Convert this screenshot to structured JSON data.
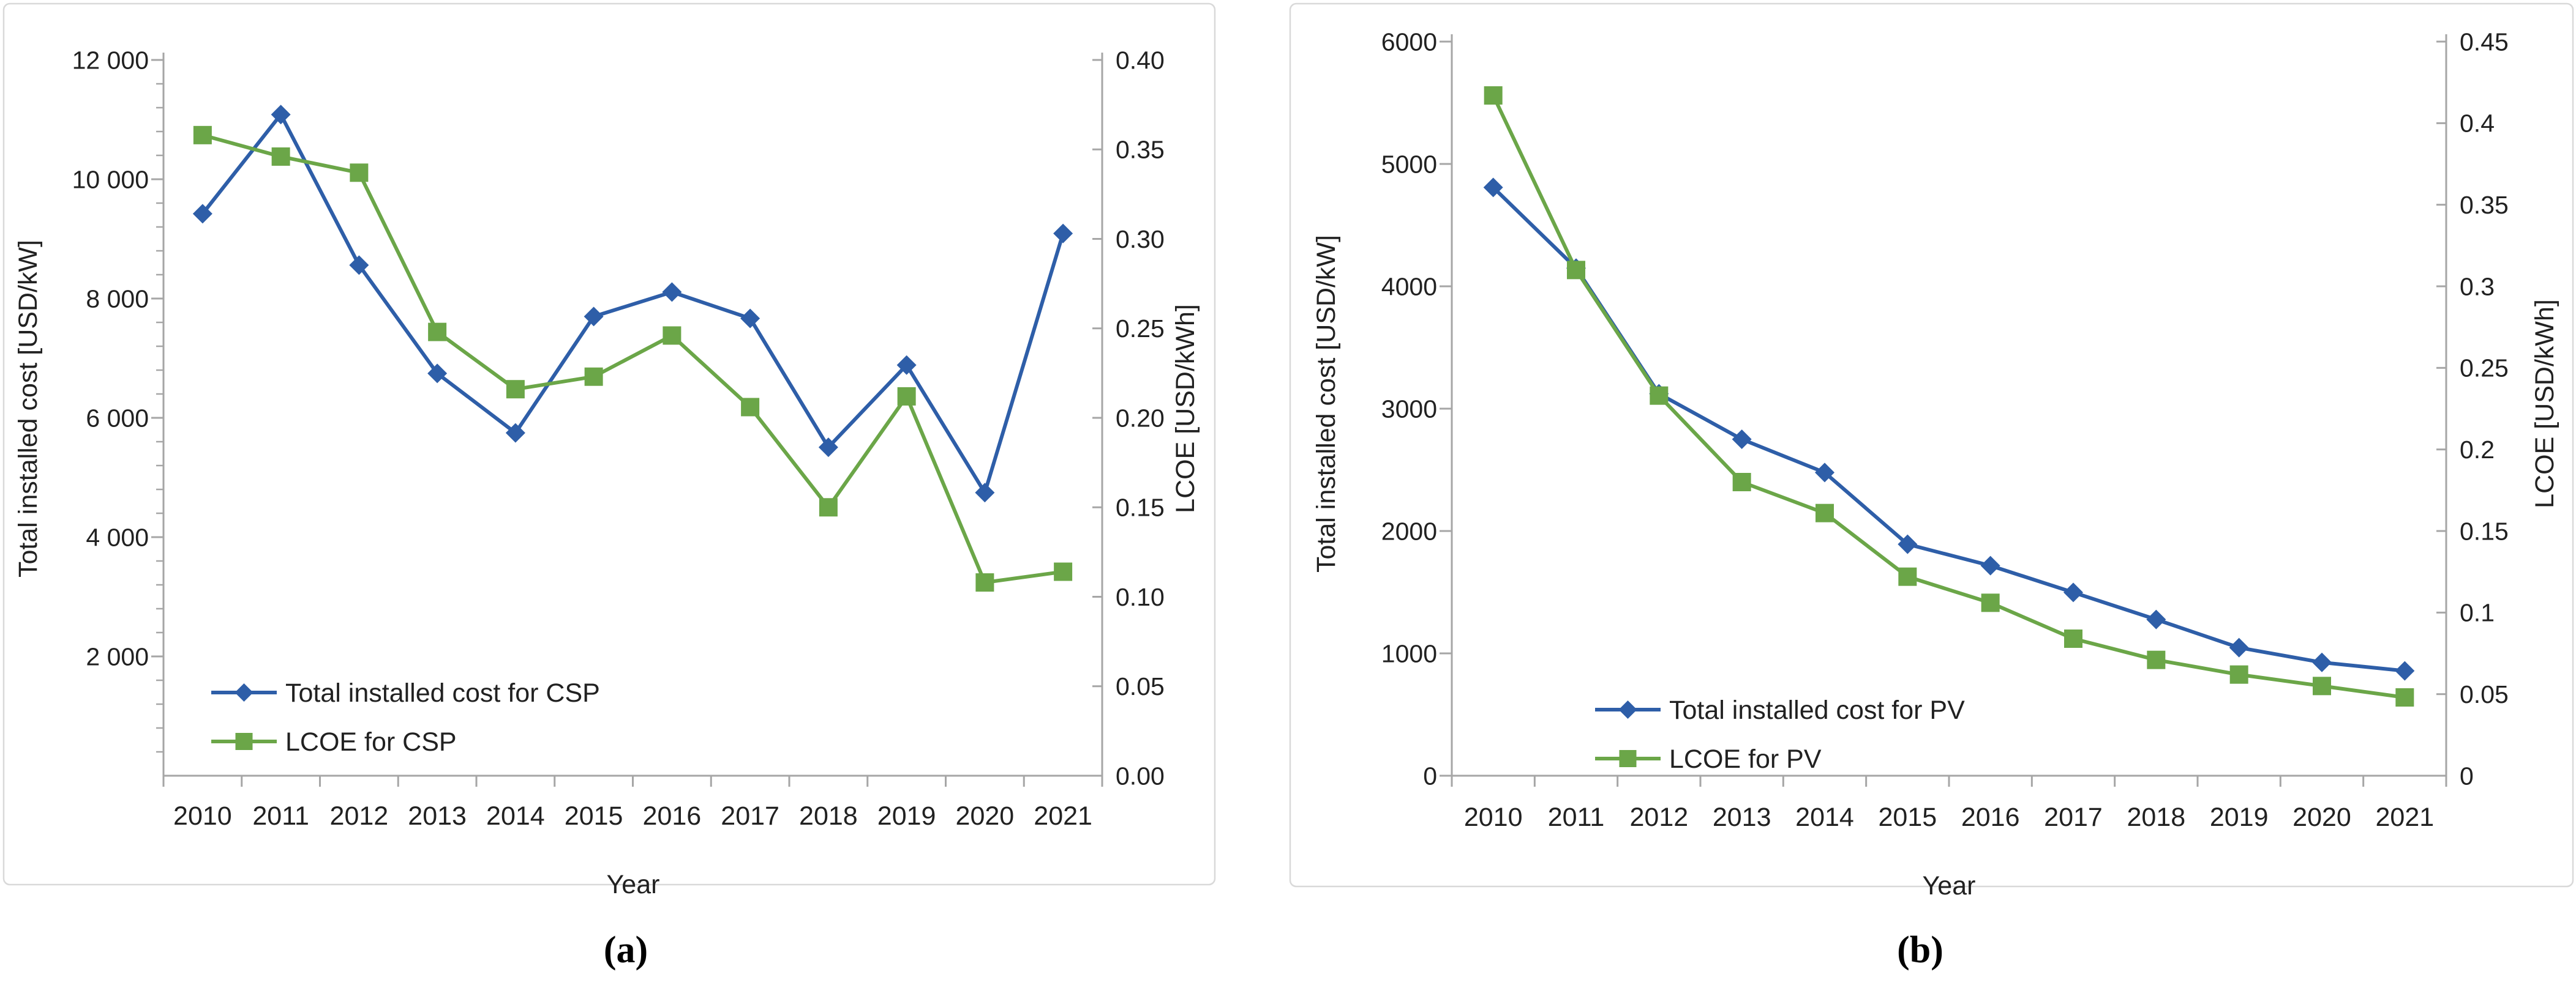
{
  "figure": {
    "description": "Total installed cost and LCOE trends for CSP and PV, 2010-2021"
  },
  "colors": {
    "cost_series_blue": "#2e5ea8",
    "lcoe_series_green": "#6ba648",
    "axis_line_gray": "#a6a6a6",
    "panel_border_gray": "#d9d9d9",
    "text_dark": "#212121"
  },
  "chart_data": [
    {
      "type": "line",
      "panel": "a",
      "caption": "(a)",
      "x_axis": {
        "title": "Year",
        "categories": [
          "2010",
          "2011",
          "2012",
          "2013",
          "2014",
          "2015",
          "2016",
          "2017",
          "2018",
          "2019",
          "2020",
          "2021"
        ]
      },
      "left_axis": {
        "title": "Total installed cost [USD/kW]",
        "min": 0,
        "max": 12000,
        "major_unit": 2000,
        "minor_unit": 400,
        "tick_labels": [
          {
            "value": 12000,
            "label": "12 000"
          },
          {
            "value": 10000,
            "label": "10 000"
          },
          {
            "value": 8000,
            "label": "8 000"
          },
          {
            "value": 6000,
            "label": "6 000"
          },
          {
            "value": 4000,
            "label": "4 000"
          },
          {
            "value": 2000,
            "label": "2 000"
          }
        ]
      },
      "right_axis": {
        "title": "LCOE [USD/kWh]",
        "min": 0,
        "max": 0.4,
        "major_unit": 0.05,
        "tick_labels": [
          {
            "value": 0.4,
            "label": "0.40"
          },
          {
            "value": 0.35,
            "label": "0.35"
          },
          {
            "value": 0.3,
            "label": "0.30"
          },
          {
            "value": 0.25,
            "label": "0.25"
          },
          {
            "value": 0.2,
            "label": "0.20"
          },
          {
            "value": 0.15,
            "label": "0.15"
          },
          {
            "value": 0.1,
            "label": "0.10"
          },
          {
            "value": 0.05,
            "label": "0.05"
          },
          {
            "value": 0.0,
            "label": "0.00"
          }
        ]
      },
      "series": [
        {
          "name": "Total installed cost for CSP",
          "axis": "left",
          "color": "#2e5ea8",
          "marker": "diamond",
          "values": [
            9422,
            11085,
            8560,
            6745,
            5748,
            7699,
            8109,
            7667,
            5507,
            6885,
            4746,
            9091
          ]
        },
        {
          "name": "LCOE for CSP",
          "axis": "right",
          "color": "#6ba648",
          "marker": "square",
          "values": [
            0.358,
            0.346,
            0.337,
            0.248,
            0.216,
            0.223,
            0.246,
            0.206,
            0.15,
            0.212,
            0.108,
            0.114
          ]
        }
      ],
      "legend_position": "inside bottom-left",
      "grid": "off"
    },
    {
      "type": "line",
      "panel": "b",
      "caption": "(b)",
      "x_axis": {
        "title": "Year",
        "categories": [
          "2010",
          "2011",
          "2012",
          "2013",
          "2014",
          "2015",
          "2016",
          "2017",
          "2018",
          "2019",
          "2020",
          "2021"
        ]
      },
      "left_axis": {
        "title": "Total installed cost [USD/kW]",
        "min": 0,
        "max": 6000,
        "major_unit": 1000,
        "minor_unit": null,
        "tick_labels": [
          {
            "value": 6000,
            "label": "6000"
          },
          {
            "value": 5000,
            "label": "5000"
          },
          {
            "value": 4000,
            "label": "4000"
          },
          {
            "value": 3000,
            "label": "3000"
          },
          {
            "value": 2000,
            "label": "2000"
          },
          {
            "value": 1000,
            "label": "1000"
          },
          {
            "value": 0,
            "label": "0"
          }
        ]
      },
      "right_axis": {
        "title": "LCOE [USD/kWh]",
        "min": 0,
        "max": 0.45,
        "major_unit": 0.05,
        "tick_labels": [
          {
            "value": 0.45,
            "label": "0.45"
          },
          {
            "value": 0.4,
            "label": "0.4"
          },
          {
            "value": 0.35,
            "label": "0.35"
          },
          {
            "value": 0.3,
            "label": "0.3"
          },
          {
            "value": 0.25,
            "label": "0.25"
          },
          {
            "value": 0.2,
            "label": "0.2"
          },
          {
            "value": 0.15,
            "label": "0.15"
          },
          {
            "value": 0.1,
            "label": "0.1"
          },
          {
            "value": 0.05,
            "label": "0.05"
          },
          {
            "value": 0.0,
            "label": "0"
          }
        ]
      },
      "series": [
        {
          "name": "Total installed cost for PV",
          "axis": "left",
          "color": "#2e5ea8",
          "marker": "diamond",
          "values": [
            4808,
            4149,
            3122,
            2750,
            2478,
            1892,
            1717,
            1498,
            1277,
            1047,
            926,
            857
          ]
        },
        {
          "name": "LCOE for PV",
          "axis": "right",
          "color": "#6ba648",
          "marker": "square",
          "values": [
            0.417,
            0.31,
            0.233,
            0.18,
            0.161,
            0.122,
            0.106,
            0.084,
            0.071,
            0.062,
            0.055,
            0.048
          ]
        }
      ],
      "legend_position": "inside bottom-left",
      "grid": "off"
    }
  ]
}
